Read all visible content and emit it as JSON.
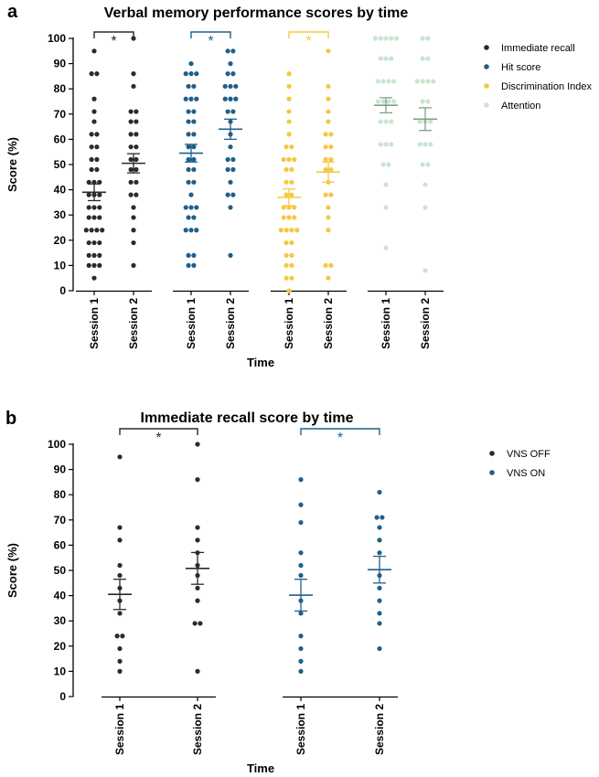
{
  "panels": [
    {
      "letter": "a"
    },
    {
      "letter": "b"
    }
  ],
  "chart_data": [
    {
      "type": "scatter",
      "title": "Verbal memory performance scores by time",
      "xlabel": "Time",
      "ylabel": "Score (%)",
      "ylim": [
        0,
        100
      ],
      "yticks": [
        0,
        10,
        20,
        30,
        40,
        50,
        60,
        70,
        80,
        90,
        100
      ],
      "categories": [
        "Session 1",
        "Session 2"
      ],
      "legend_position": "right",
      "series": [
        {
          "name": "Immediate recall",
          "color": "#2b2b2b",
          "significance": "*",
          "session1": {
            "mean": 39,
            "sem": 3.3,
            "points": [
              5,
              10,
              10,
              10,
              14,
              14,
              14,
              19,
              19,
              19,
              24,
              24,
              24,
              24,
              29,
              29,
              29,
              33,
              33,
              33,
              38,
              38,
              38,
              43,
              43,
              43,
              48,
              48,
              52,
              52,
              57,
              57,
              62,
              62,
              67,
              71,
              76,
              86,
              86,
              95
            ]
          },
          "session2": {
            "mean": 50.5,
            "sem": 3.8,
            "points": [
              10,
              19,
              24,
              29,
              33,
              38,
              38,
              43,
              43,
              48,
              48,
              52,
              52,
              57,
              57,
              62,
              62,
              67,
              67,
              71,
              71,
              81,
              86,
              100
            ]
          }
        },
        {
          "name": "Hit score",
          "color": "#1f5f8b",
          "significance": "*",
          "session1": {
            "mean": 54.5,
            "sem": 3.5,
            "points": [
              10,
              10,
              14,
              14,
              24,
              24,
              24,
              29,
              29,
              33,
              33,
              33,
              38,
              43,
              43,
              48,
              48,
              52,
              52,
              57,
              57,
              62,
              62,
              67,
              67,
              71,
              71,
              76,
              76,
              76,
              81,
              81,
              86,
              86,
              86,
              90
            ]
          },
          "session2": {
            "mean": 64,
            "sem": 4,
            "points": [
              14,
              33,
              38,
              38,
              43,
              48,
              48,
              52,
              52,
              57,
              62,
              67,
              71,
              71,
              76,
              76,
              76,
              81,
              81,
              81,
              86,
              86,
              90,
              95,
              95
            ]
          }
        },
        {
          "name": "Discrimination Index",
          "color": "#f5c842",
          "significance": "*",
          "session1": {
            "mean": 37,
            "sem": 3.3,
            "points": [
              0,
              5,
              5,
              10,
              10,
              14,
              14,
              19,
              19,
              24,
              24,
              24,
              24,
              29,
              29,
              29,
              33,
              33,
              33,
              38,
              38,
              43,
              43,
              48,
              48,
              52,
              52,
              52,
              57,
              57,
              62,
              67,
              71,
              76,
              81,
              86
            ]
          },
          "session2": {
            "mean": 47,
            "sem": 4,
            "points": [
              5,
              10,
              10,
              24,
              29,
              33,
              38,
              38,
              43,
              48,
              48,
              52,
              52,
              57,
              57,
              62,
              62,
              67,
              71,
              76,
              81,
              95
            ]
          }
        },
        {
          "name": "Attention",
          "color": "#c8e6cf",
          "significance": "",
          "session1": {
            "mean": 73.5,
            "sem": 3,
            "points": [
              17,
              33,
              42,
              50,
              50,
              58,
              58,
              58,
              67,
              67,
              67,
              75,
              75,
              75,
              75,
              83,
              83,
              83,
              83,
              92,
              92,
              92,
              100,
              100,
              100,
              100,
              100
            ]
          },
          "session2": {
            "mean": 68,
            "sem": 4.5,
            "points": [
              8,
              33,
              42,
              50,
              50,
              58,
              58,
              58,
              67,
              67,
              67,
              75,
              75,
              83,
              83,
              83,
              83,
              92,
              92,
              100,
              100
            ]
          }
        }
      ]
    },
    {
      "type": "scatter",
      "title": "Immediate recall score by time",
      "xlabel": "Time",
      "ylabel": "Score (%)",
      "ylim": [
        0,
        100
      ],
      "yticks": [
        0,
        10,
        20,
        30,
        40,
        50,
        60,
        70,
        80,
        90,
        100
      ],
      "categories": [
        "Session 1",
        "Session 2"
      ],
      "legend_position": "right",
      "series": [
        {
          "name": "VNS OFF",
          "color": "#2b2b2b",
          "significance": "*",
          "session1": {
            "mean": 40.5,
            "sem": 6,
            "points": [
              10,
              14,
              19,
              24,
              24,
              33,
              38,
              43,
              48,
              52,
              62,
              67,
              95
            ]
          },
          "session2": {
            "mean": 50.8,
            "sem": 6.3,
            "points": [
              10,
              29,
              29,
              38,
              43,
              48,
              52,
              57,
              62,
              67,
              86,
              100
            ]
          }
        },
        {
          "name": "VNS ON",
          "color": "#1f5f8b",
          "significance": "*",
          "session1": {
            "mean": 40.2,
            "sem": 6.3,
            "points": [
              10,
              14,
              19,
              24,
              33,
              38,
              48,
              52,
              57,
              69,
              76,
              86
            ]
          },
          "session2": {
            "mean": 50.3,
            "sem": 5.3,
            "points": [
              19,
              29,
              33,
              38,
              43,
              48,
              57,
              62,
              67,
              71,
              71,
              81
            ]
          }
        }
      ]
    }
  ]
}
